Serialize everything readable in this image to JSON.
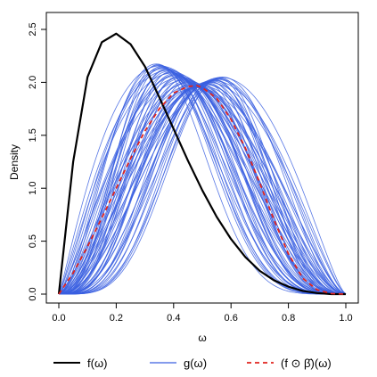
{
  "chart_data": {
    "type": "line",
    "title": "",
    "xlabel": "ω",
    "ylabel": "Density",
    "xlim": [
      0,
      1
    ],
    "ylim": [
      0,
      2.5
    ],
    "x_ticks": [
      "0.0",
      "0.2",
      "0.4",
      "0.6",
      "0.8",
      "1.0"
    ],
    "y_ticks": [
      "0.0",
      "0.5",
      "1.0",
      "1.5",
      "2.0",
      "2.5"
    ],
    "grid": false,
    "legend_position": "bottom",
    "colors": {
      "f": "#000000",
      "g": "#3a5fe0",
      "fbeta": "#e0241f"
    },
    "series": [
      {
        "name": "f(ω)",
        "style": "solid",
        "x": [
          0,
          0.05,
          0.1,
          0.15,
          0.2,
          0.25,
          0.3,
          0.35,
          0.4,
          0.45,
          0.5,
          0.55,
          0.6,
          0.65,
          0.7,
          0.75,
          0.8,
          0.85,
          0.9,
          0.95,
          1.0
        ],
        "y": [
          0,
          1.25,
          2.05,
          2.38,
          2.46,
          2.36,
          2.15,
          1.86,
          1.56,
          1.26,
          0.98,
          0.73,
          0.52,
          0.35,
          0.22,
          0.13,
          0.07,
          0.03,
          0.01,
          0.0,
          0
        ]
      },
      {
        "name": "g(ω)",
        "style": "solid",
        "note_count": 60,
        "band_peak_x_range": [
          0.34,
          0.57
        ],
        "band_peak_y_range": [
          1.9,
          2.35
        ]
      },
      {
        "name": "(f ⊙ β̂)(ω)",
        "style": "dashed",
        "x": [
          0,
          0.05,
          0.1,
          0.15,
          0.2,
          0.25,
          0.3,
          0.35,
          0.4,
          0.45,
          0.48,
          0.5,
          0.55,
          0.6,
          0.65,
          0.7,
          0.75,
          0.8,
          0.85,
          0.9,
          0.95,
          1.0
        ],
        "y": [
          0,
          0.2,
          0.45,
          0.72,
          1.0,
          1.28,
          1.54,
          1.75,
          1.9,
          1.96,
          1.97,
          1.95,
          1.85,
          1.65,
          1.38,
          1.05,
          0.7,
          0.38,
          0.15,
          0.04,
          0.005,
          0
        ]
      }
    ]
  }
}
